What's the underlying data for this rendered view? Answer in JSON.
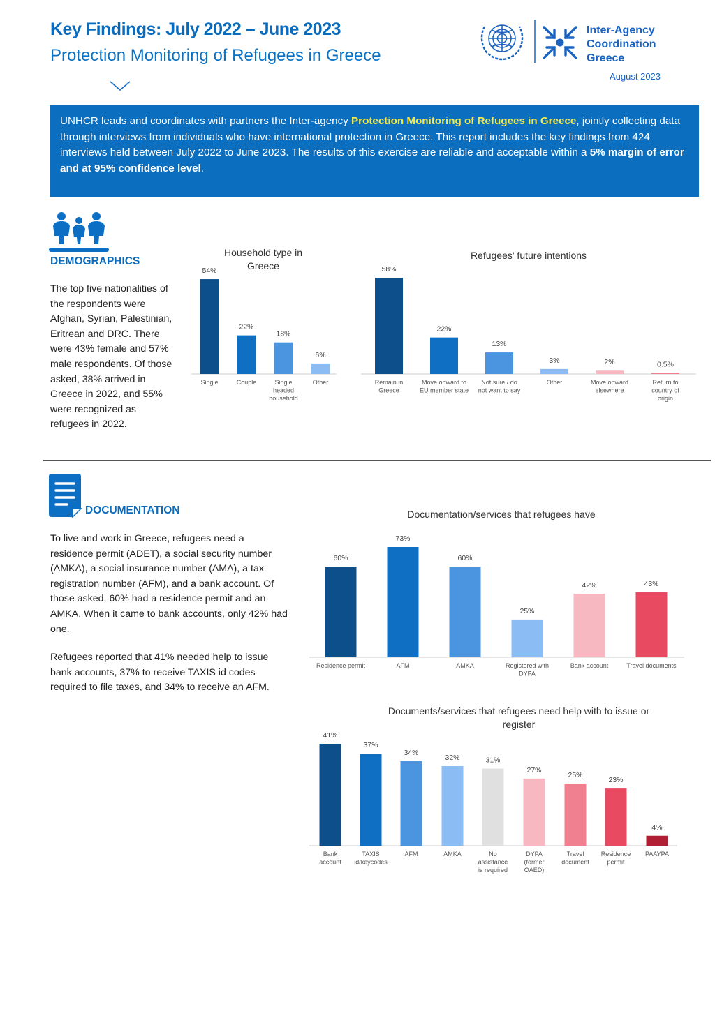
{
  "header": {
    "title": "Key Findings: July 2022 – June 2023",
    "subtitle": "Protection Monitoring of Refugees in Greece",
    "date": "August 2023",
    "org_lines": [
      "Inter-Agency",
      "Coordination",
      "Greece"
    ],
    "un_logo_icon": "un-emblem-icon",
    "iac_logo_icon": "inter-agency-arrows-icon"
  },
  "intro": {
    "part1": "UNHCR leads and coordinates with partners the Inter-agency ",
    "highlight": "Protection Monitoring of Refugees in Greece",
    "part2": ", jointly collecting data through interviews from individuals who have international protection in Greece. This report includes the key findings from 424 interviews held between July 2022 to June 2023. The results of this exercise are reliable and acceptable within a ",
    "bold": "5% margin of error and at 95% confidence level",
    "end": "."
  },
  "demographics": {
    "title": "DEMOGRAPHICS",
    "icon": "family-icon",
    "text": "The top five nationalities of the respondents were Afghan, Syrian, Palestinian, Eritrean and DRC. There were 43% female and 57% male respondents. Of those asked, 38% arrived in Greece in 2022, and 55% were recognized as refugees in 2022."
  },
  "documentation": {
    "title": "DOCUMENTATION",
    "icon": "document-icon",
    "text1": "To live and work in Greece, refugees need a residence permit (ADET), a social security number (AMKA), a social insurance number (AMA), a tax registration number (AFM), and a bank account. Of those asked, 60% had a residence permit and an AMKA. When it came to bank accounts, only 42% had one.",
    "text2": "Refugees reported that 41% needed help to issue bank accounts, 37% to receive TAXIS id codes required to file taxes, and 34% to receive an AFM."
  },
  "colors": {
    "primary": "#0a6bbd",
    "intro_bg": "#0c6ebf",
    "highlight": "#f5e94a"
  },
  "chart_data": [
    {
      "id": "household",
      "type": "bar",
      "title": "Household type in Greece",
      "categories": [
        "Single",
        "Couple",
        "Single headed household",
        "Other"
      ],
      "values": [
        54,
        22,
        18,
        6
      ],
      "labels": [
        "54%",
        "22%",
        "18%",
        "6%"
      ],
      "colors": [
        "#0d4f8b",
        "#0f6fc2",
        "#4b94e0",
        "#8bbcf3"
      ],
      "ylim": [
        0,
        58
      ]
    },
    {
      "id": "intentions",
      "type": "bar",
      "title": "Refugees' future intentions",
      "categories": [
        "Remain in Greece",
        "Move onward to EU member state",
        "Not sure / do not want to say",
        "Other",
        "Move onward elsewhere",
        "Return to country of origin"
      ],
      "values": [
        58,
        22,
        13,
        3,
        2,
        0.5
      ],
      "labels": [
        "58%",
        "22%",
        "13%",
        "3%",
        "2%",
        "0.5%"
      ],
      "colors": [
        "#0d4f8b",
        "#0f6fc2",
        "#4b94e0",
        "#8bbcf3",
        "#f7b8c2",
        "#f07f8f"
      ],
      "ylim": [
        0,
        58
      ]
    },
    {
      "id": "docs_have",
      "type": "bar",
      "title": "Documentation/services that refugees have",
      "categories": [
        "Residence permit",
        "AFM",
        "AMKA",
        "Registered with DYPA",
        "Bank account",
        "Travel documents"
      ],
      "values": [
        60,
        73,
        60,
        25,
        42,
        43
      ],
      "labels": [
        "60%",
        "73%",
        "60%",
        "25%",
        "42%",
        "43%"
      ],
      "colors": [
        "#0d4f8b",
        "#0f6fc2",
        "#4b94e0",
        "#8bbcf3",
        "#f7b8c2",
        "#e84a62"
      ],
      "ylim": [
        0,
        73
      ]
    },
    {
      "id": "docs_help",
      "type": "bar",
      "title": "Documents/services that refugees need help with to issue or register",
      "categories": [
        "Bank account",
        "TAXIS id/keycodes",
        "AFM",
        "AMKA",
        "No assistance is required",
        "DYPA (former OAED)",
        "Travel document",
        "Residence permit",
        "PAAYPA"
      ],
      "values": [
        41,
        37,
        34,
        32,
        31,
        27,
        25,
        23,
        4
      ],
      "labels": [
        "41%",
        "37%",
        "34%",
        "32%",
        "31%",
        "27%",
        "25%",
        "23%",
        "4%"
      ],
      "colors": [
        "#0d4f8b",
        "#0f6fc2",
        "#4b94e0",
        "#8bbcf3",
        "#e0e0e0",
        "#f7b8c2",
        "#f07f8f",
        "#e84a62",
        "#b01e34"
      ],
      "ylim": [
        0,
        41
      ]
    }
  ]
}
